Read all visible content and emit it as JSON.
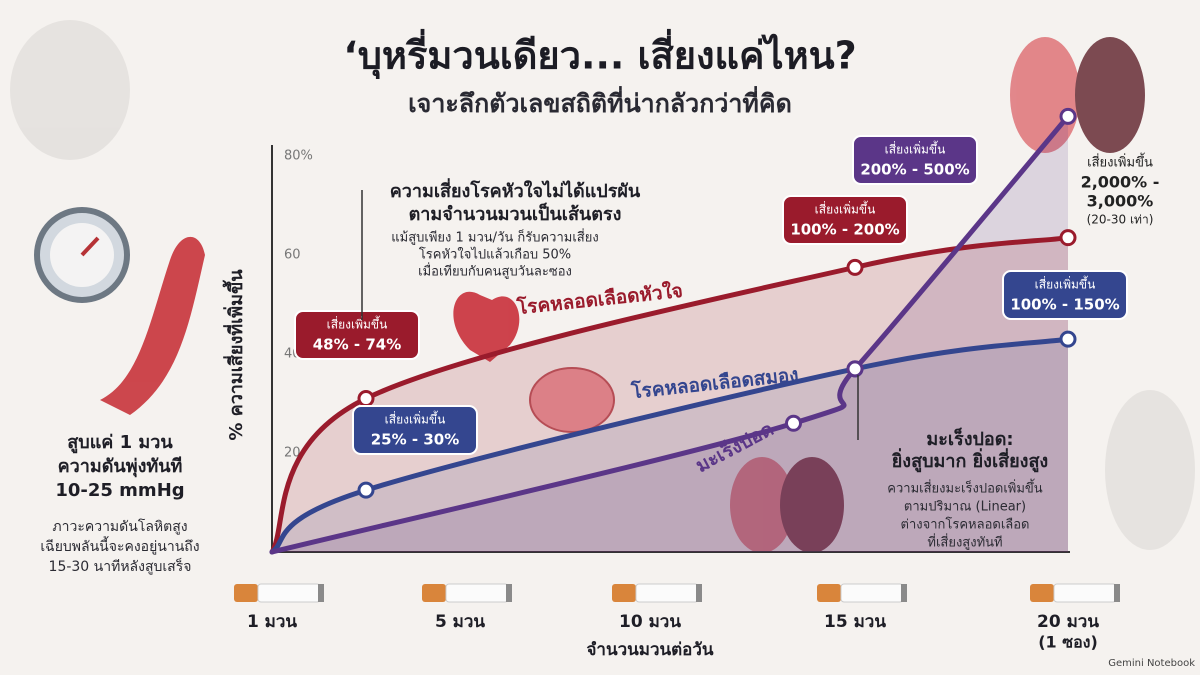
{
  "title": "‘บุหรี่มวนเดียว... เสี่ยงแค่ไหน?",
  "subtitle": "เจาะลึกตัวเลขสถิติที่น่ากลัวกว่าที่คิด",
  "left_panel": {
    "headline": [
      "สูบแค่ 1 มวน",
      "ความดันพุ่งทันที",
      "10-25 mmHg"
    ],
    "body": [
      "ภาวะความดันโลหิตสูง",
      "เฉียบพลันนี้จะคงอยู่นานถึง",
      "15-30 นาทีหลังสูบเสร็จ"
    ]
  },
  "heart_note": {
    "headline": [
      "ความเสี่ยงโรคหัวใจไม่ได้แปรผัน",
      "ตามจำนวนมวนเป็นเส้นตรง"
    ],
    "body": [
      "แม้สูบเพียง 1 มวน/วัน ก็รับความเสี่ยง",
      "โรคหัวใจไปแล้วเกือบ 50%",
      "เมื่อเทียบกับคนสูบวันละซอง"
    ]
  },
  "lung_note": {
    "headline": [
      "มะเร็งปอด:",
      "ยิ่งสูบมาก ยิ่งเสี่ยงสูง"
    ],
    "body": [
      "ความเสี่ยงมะเร็งปอดเพิ่มขึ้น",
      "ตามปริมาณ (Linear)",
      "ต่างจากโรคหลอดเลือด",
      "ที่เสี่ยงสูงทันที"
    ]
  },
  "top_note": [
    "เสี่ยงเพิ่มขึ้น",
    "2,000% -",
    "3,000%",
    "(20-30 เท่า)"
  ],
  "watermark": "Gemini Notebook",
  "chart_data": {
    "type": "line",
    "y_label": "% ความเสี่ยงที่เพิ่มขึ้น",
    "x_label": "จำนวนมวนต่อวัน",
    "ylim": [
      0,
      80
    ],
    "yticks": [
      20,
      40,
      60,
      {
        "value": 80,
        "label": "80%"
      }
    ],
    "xlim": [
      1,
      20
    ],
    "xticks": [
      {
        "value": 1,
        "label": "1 มวน"
      },
      {
        "value": 5,
        "label": "5 มวน"
      },
      {
        "value": 10,
        "label": "10 มวน"
      },
      {
        "value": 15,
        "label": "15 มวน"
      },
      {
        "value": 20,
        "label": "20 มวน"
      }
    ],
    "last_tick_note": "(1 ซอง)",
    "grid": false,
    "series": [
      {
        "name": "โรคหลอดเลือดหัวใจ",
        "color": "#9a1b2c",
        "x": [
          1,
          3,
          15,
          20
        ],
        "values": [
          0,
          31,
          57.5,
          63.5
        ]
      },
      {
        "name": "โรคหลอดเลือดสมอง",
        "color": "#34468f",
        "x": [
          1,
          3,
          15,
          20
        ],
        "values": [
          0,
          12.5,
          37,
          43
        ]
      },
      {
        "name": "มะเร็งปอด",
        "color": "#5b3688",
        "x": [
          1,
          13.5,
          15,
          20
        ],
        "values": [
          0,
          26,
          37,
          88
        ]
      }
    ],
    "callouts": [
      {
        "series": 0,
        "lines": [
          "เสี่ยงเพิ่มขึ้น",
          "48% - 74%"
        ]
      },
      {
        "series": 0,
        "lines": [
          "เสี่ยงเพิ่มขึ้น",
          "100% - 200%"
        ]
      },
      {
        "series": 2,
        "lines": [
          "เสี่ยงเพิ่มขึ้น",
          "200% - 500%"
        ]
      },
      {
        "series": 1,
        "lines": [
          "เสี่ยงเพิ่มขึ้น",
          "100% - 150%"
        ]
      },
      {
        "series": 1,
        "lines": [
          "เสี่ยงเพิ่มขึ้น",
          "25% - 30%"
        ]
      }
    ]
  }
}
